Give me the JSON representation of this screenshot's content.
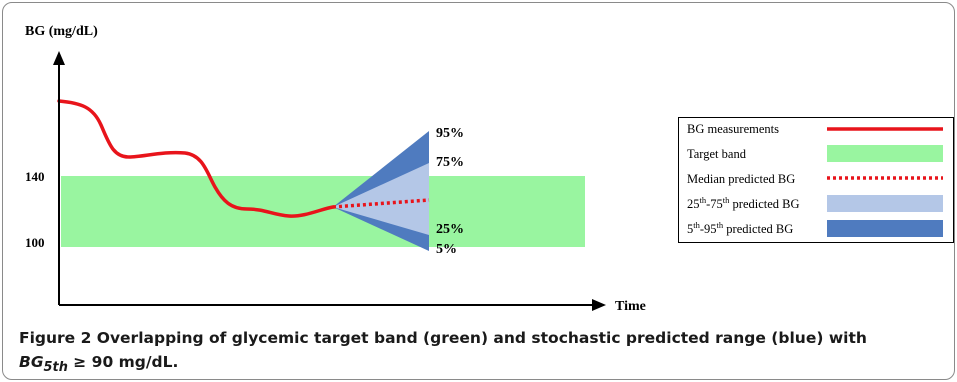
{
  "diagram": {
    "y_axis_label": "BG (mg/dL)",
    "x_axis_label": "Time",
    "y_ticks": [
      "140",
      "100"
    ],
    "percentile_labels": {
      "p95": "95%",
      "p75": "75%",
      "p25": "25%",
      "p5": "5%"
    },
    "colors": {
      "measurements": "#e8141b",
      "target_band": "#99f5a0",
      "median": "#e8141b",
      "iqr": "#b4c7e7",
      "outer": "#4f7bbf"
    }
  },
  "legend": {
    "measurements": "BG measurements",
    "target": "Target band",
    "median": "Median predicted BG",
    "iqr_pre_1": "25",
    "iqr_sup_1": "th",
    "iqr_mid": "-75",
    "iqr_sup_2": "th",
    "iqr_post": " predicted BG",
    "outer_pre_1": "5",
    "outer_sup_1": "th",
    "outer_mid": "-95",
    "outer_sup_2": "th",
    "outer_post": " predicted BG"
  },
  "caption": {
    "prefix": "Figure 2 Overlapping of glycemic target band (green) and stochastic predicted range (blue) with",
    "var": "BG",
    "var_sub": "5th",
    "suffix": " ≥ 90 mg/dL."
  }
}
